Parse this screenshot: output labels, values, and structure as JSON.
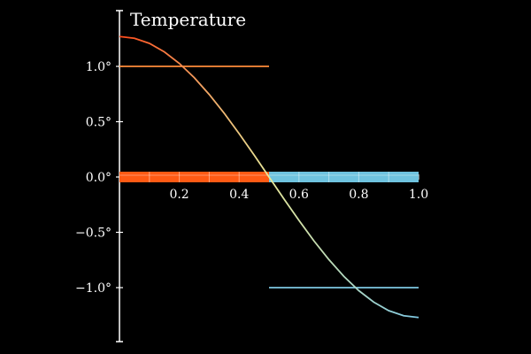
{
  "chart_data": {
    "type": "line",
    "title": "Temperature",
    "xlabel": "",
    "ylabel": "",
    "xlim": [
      0,
      1
    ],
    "ylim": [
      -1.5,
      1.5
    ],
    "grid": false,
    "x_tick_labels": [
      "0.2",
      "0.4",
      "0.6",
      "0.8",
      "1.0"
    ],
    "x_tick_values": [
      0.2,
      0.4,
      0.6,
      0.8,
      1.0
    ],
    "y_tick_labels": [
      "1.0°",
      "0.5°",
      "0.0°",
      "−0.5°",
      "−1.0°"
    ],
    "y_tick_values": [
      1.0,
      0.5,
      0.0,
      -0.5,
      -1.0
    ],
    "series": [
      {
        "kind": "curve",
        "x": [
          0,
          0.05,
          0.1,
          0.15,
          0.2,
          0.25,
          0.3,
          0.35,
          0.4,
          0.45,
          0.5,
          0.55,
          0.6,
          0.65,
          0.7,
          0.75,
          0.8,
          0.85,
          0.9,
          0.95,
          1.0
        ],
        "y": [
          1.27,
          1.254,
          1.208,
          1.131,
          1.027,
          0.898,
          0.746,
          0.577,
          0.392,
          0.199,
          0.0,
          -0.199,
          -0.392,
          -0.577,
          -0.746,
          -0.898,
          -1.027,
          -1.131,
          -1.208,
          -1.254,
          -1.27
        ],
        "color_start": "#ff4a1a",
        "color_mid": "#e8e89a",
        "color_end": "#7ec8e3"
      },
      {
        "kind": "level",
        "x": [
          0,
          0.5
        ],
        "y": [
          1.0,
          1.0
        ],
        "color": "#ff8c3a"
      },
      {
        "kind": "level",
        "x": [
          0.5,
          1.0
        ],
        "y": [
          -1.0,
          -1.0
        ],
        "color": "#7ec8e3"
      },
      {
        "kind": "rod",
        "x": [
          0,
          0.5
        ],
        "y": [
          0,
          0
        ],
        "color": "#ff5a14",
        "segments": 5
      },
      {
        "kind": "rod",
        "x": [
          0.5,
          1.0
        ],
        "y": [
          0,
          0
        ],
        "color": "#6fc3df",
        "segments": 5
      }
    ]
  }
}
